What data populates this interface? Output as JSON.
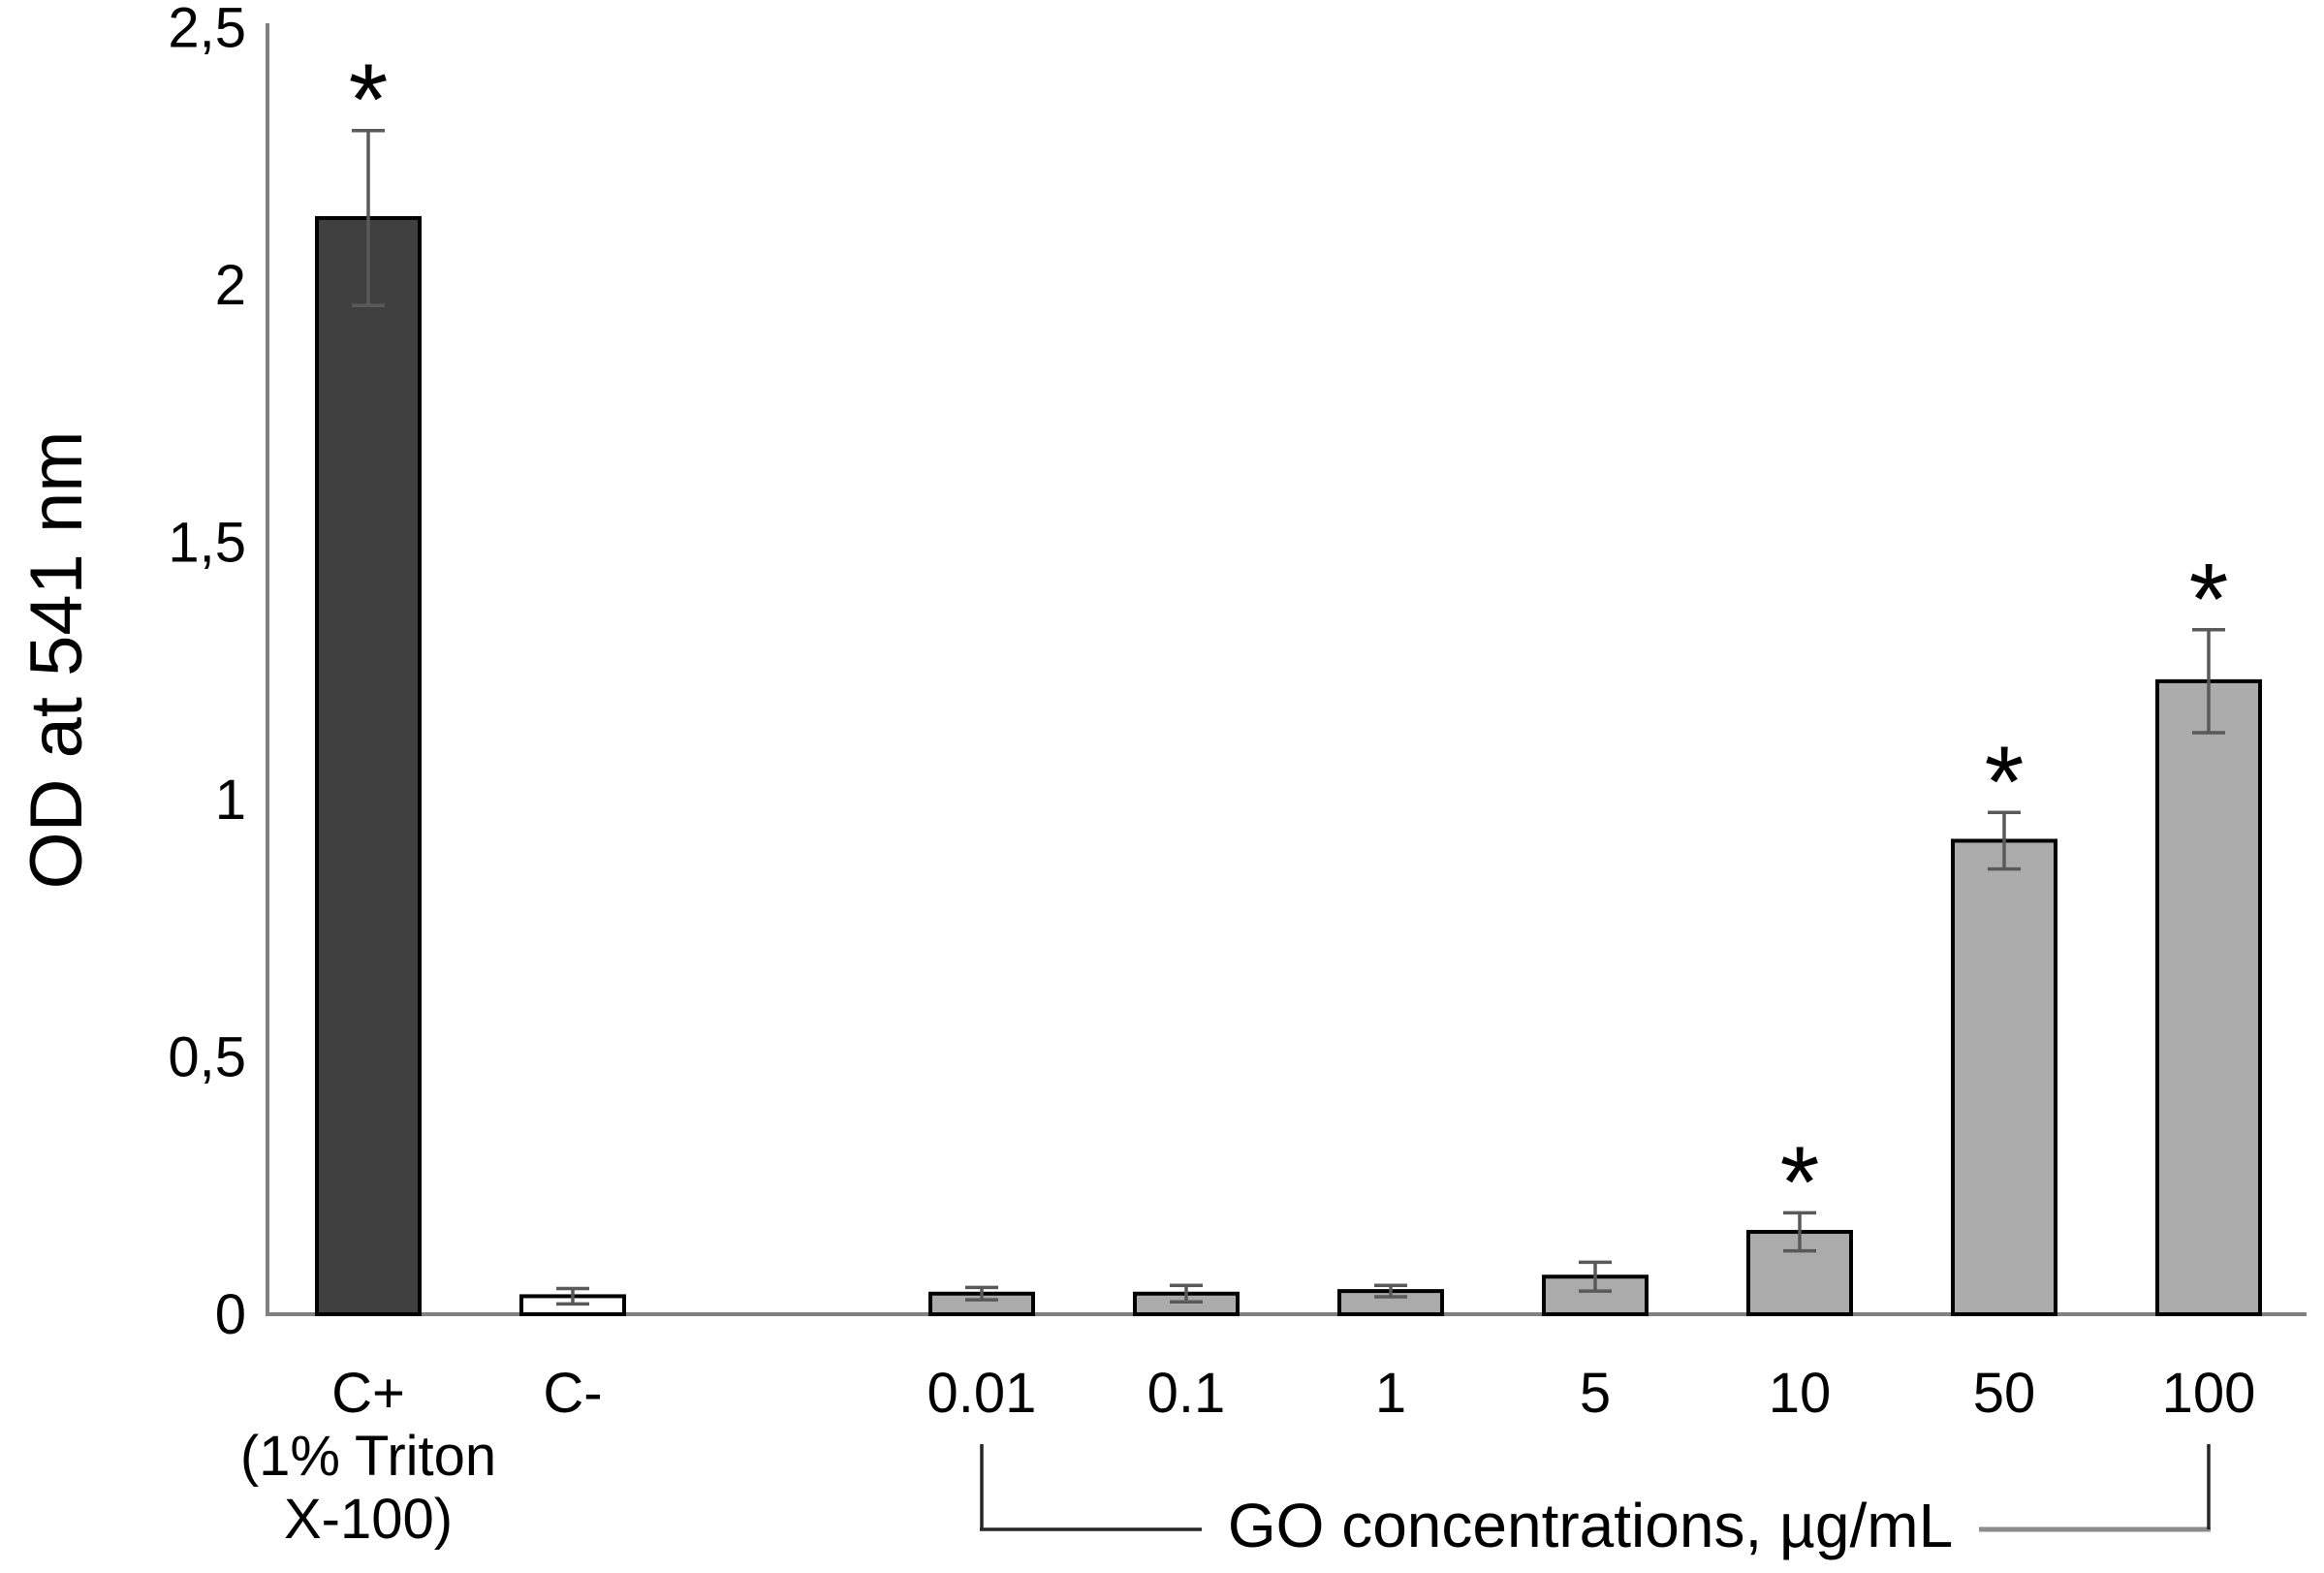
{
  "chart_data": {
    "type": "bar",
    "title": "",
    "ylabel": "OD at 541 nm",
    "xlabel_group": "GO concentrations, µg/mL",
    "significance_marker": "*",
    "ylim": [
      0,
      2.5
    ],
    "grid": false,
    "legend": "none",
    "yticks": [
      {
        "value": 0,
        "label": "0"
      },
      {
        "value": 0.5,
        "label": "0,5"
      },
      {
        "value": 1,
        "label": "1"
      },
      {
        "value": 1.5,
        "label": "1,5"
      },
      {
        "value": 2,
        "label": "2"
      },
      {
        "value": 2.5,
        "label": "2,5"
      }
    ],
    "bars": [
      {
        "id": "c-plus",
        "label_lines": [
          "C+",
          "(1% Triton",
          "X-100)"
        ],
        "value": 2.13,
        "error": 0.17,
        "significant": true,
        "style": "dark",
        "slot": 0,
        "in_go_group": false
      },
      {
        "id": "c-minus",
        "label_lines": [
          "C-"
        ],
        "value": 0.035,
        "error": 0.015,
        "significant": false,
        "style": "white",
        "slot": 1,
        "in_go_group": false
      },
      {
        "id": "go-0.01",
        "label_lines": [
          "0.01"
        ],
        "value": 0.04,
        "error": 0.012,
        "significant": false,
        "style": "light",
        "slot": 3,
        "in_go_group": true
      },
      {
        "id": "go-0.1",
        "label_lines": [
          "0.1"
        ],
        "value": 0.04,
        "error": 0.016,
        "significant": false,
        "style": "light",
        "slot": 4,
        "in_go_group": true
      },
      {
        "id": "go-1",
        "label_lines": [
          "1"
        ],
        "value": 0.045,
        "error": 0.011,
        "significant": false,
        "style": "light",
        "slot": 5,
        "in_go_group": true
      },
      {
        "id": "go-5",
        "label_lines": [
          "5"
        ],
        "value": 0.073,
        "error": 0.028,
        "significant": false,
        "style": "light",
        "slot": 6,
        "in_go_group": true
      },
      {
        "id": "go-10",
        "label_lines": [
          "10"
        ],
        "value": 0.16,
        "error": 0.037,
        "significant": true,
        "style": "light",
        "slot": 7,
        "in_go_group": true
      },
      {
        "id": "go-50",
        "label_lines": [
          "50"
        ],
        "value": 0.92,
        "error": 0.055,
        "significant": true,
        "style": "light",
        "slot": 8,
        "in_go_group": true
      },
      {
        "id": "go-100",
        "label_lines": [
          "100"
        ],
        "value": 1.23,
        "error": 0.1,
        "significant": true,
        "style": "light",
        "slot": 9,
        "in_go_group": true
      }
    ]
  },
  "colors": {
    "background": "#ffffff",
    "dark_bar_fill": "#3f3f3f",
    "light_bar_fill": "#ababab",
    "white_bar_fill": "#ffffff",
    "bar_outline": "#000000",
    "axis_line": "#808080",
    "error_bar": "#595959",
    "text": "#000000",
    "bracket_left": "#262626",
    "bracket_right_vertical": "#262626",
    "bracket_right_horizontal": "#8c8c8c"
  }
}
